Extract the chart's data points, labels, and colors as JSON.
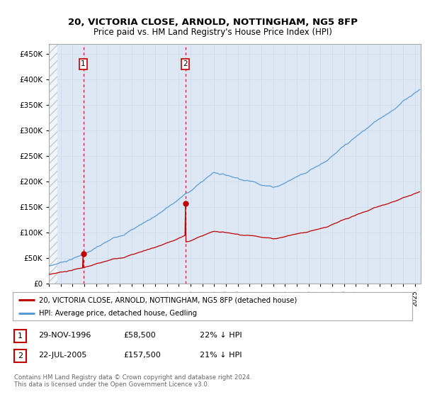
{
  "title_line1": "20, VICTORIA CLOSE, ARNOLD, NOTTINGHAM, NG5 8FP",
  "title_line2": "Price paid vs. HM Land Registry's House Price Index (HPI)",
  "ylim": [
    0,
    470000
  ],
  "xlim_start": 1994.0,
  "xlim_end": 2025.5,
  "yticks": [
    0,
    50000,
    100000,
    150000,
    200000,
    250000,
    300000,
    350000,
    400000,
    450000
  ],
  "ytick_labels": [
    "£0",
    "£50K",
    "£100K",
    "£150K",
    "£200K",
    "£250K",
    "£300K",
    "£350K",
    "£400K",
    "£450K"
  ],
  "transaction1_x": 1996.91,
  "transaction1_y": 58500,
  "transaction2_x": 2005.55,
  "transaction2_y": 157500,
  "hpi_color": "#5b9bd5",
  "price_color": "#c00000",
  "grid_color": "#ccddee",
  "plot_bg_color": "#dde8f4",
  "legend_label_price": "20, VICTORIA CLOSE, ARNOLD, NOTTINGHAM, NG5 8FP (detached house)",
  "legend_label_hpi": "HPI: Average price, detached house, Gedling",
  "table_row1": [
    "1",
    "29-NOV-1996",
    "£58,500",
    "22% ↓ HPI"
  ],
  "table_row2": [
    "2",
    "22-JUL-2005",
    "£157,500",
    "21% ↓ HPI"
  ],
  "footer": "Contains HM Land Registry data © Crown copyright and database right 2024.\nThis data is licensed under the Open Government Licence v3.0.",
  "bg_color": "#ffffff"
}
